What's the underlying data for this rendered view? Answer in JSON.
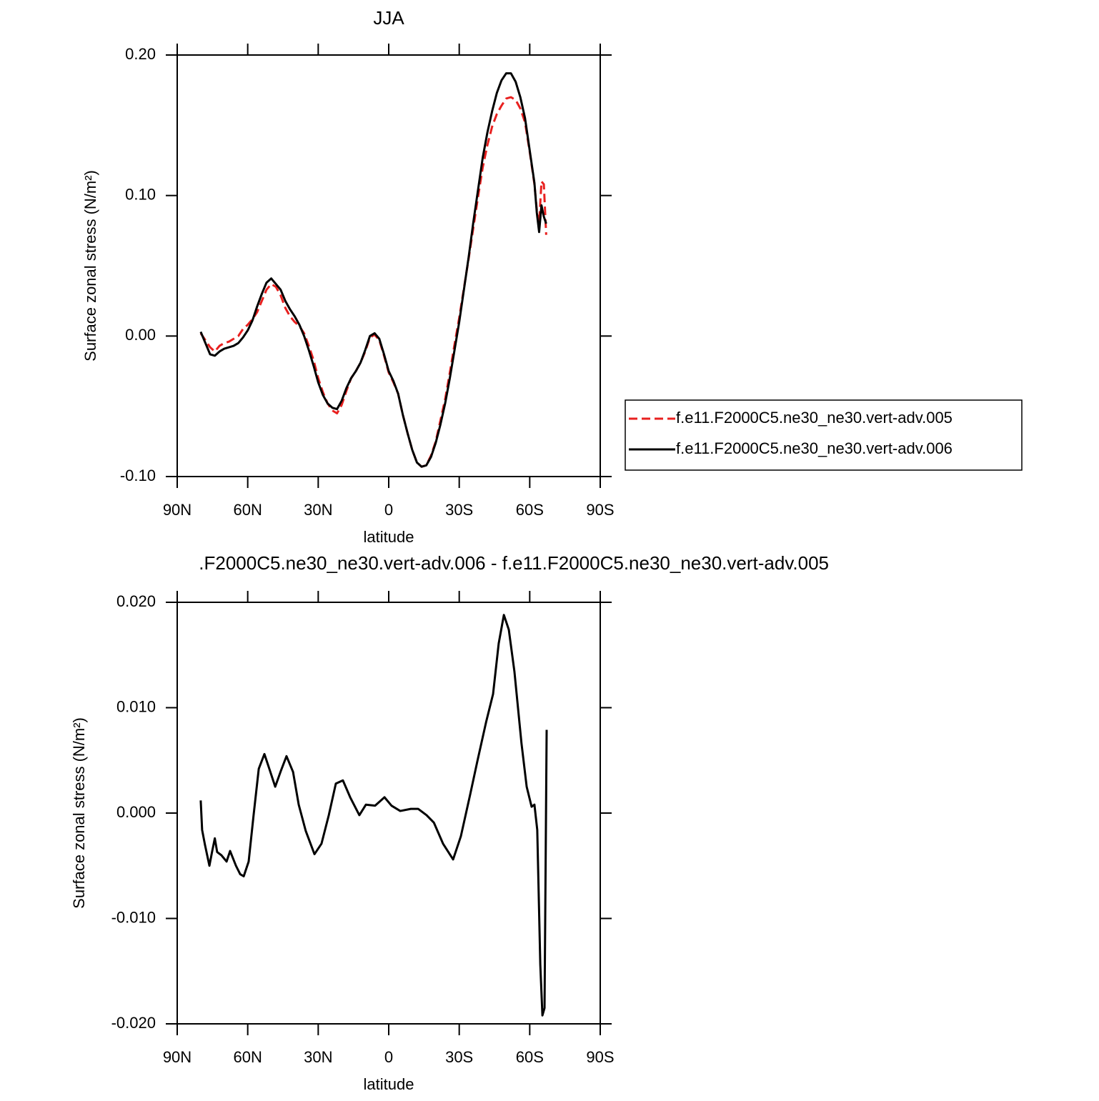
{
  "chart_data": [
    {
      "type": "line",
      "title": "JJA",
      "xlabel": "latitude",
      "ylabel": "Surface zonal stress (N/m²)",
      "xlim": [
        90,
        -90
      ],
      "ylim": [
        -0.1,
        0.2
      ],
      "xticks": [
        {
          "value": 90,
          "label": "90N"
        },
        {
          "value": 60,
          "label": "60N"
        },
        {
          "value": 30,
          "label": "30N"
        },
        0,
        {
          "value": -30,
          "label": "30S"
        },
        {
          "value": -60,
          "label": "60S"
        },
        {
          "value": -90,
          "label": "90S"
        }
      ],
      "yticks": [
        {
          "value": 0.2,
          "label": "0.20"
        },
        {
          "value": 0.1,
          "label": "0.10"
        },
        {
          "value": 0,
          "label": "0.00"
        },
        {
          "value": -0.1,
          "label": "-0.10"
        }
      ],
      "legend": "right",
      "x": [
        80,
        78,
        76,
        74,
        72,
        70,
        68,
        66,
        64,
        62,
        60,
        58,
        56,
        54,
        52,
        50,
        48,
        46,
        44,
        42,
        40,
        38,
        36,
        34,
        32,
        30,
        28,
        26,
        24,
        22,
        20,
        18,
        16,
        14,
        12,
        10,
        8,
        6,
        4,
        2,
        0,
        -2,
        -4,
        -6,
        -8,
        -10,
        -12,
        -14,
        -16,
        -18,
        -20,
        -22,
        -24,
        -26,
        -28,
        -30,
        -32,
        -34,
        -36,
        -38,
        -40,
        -42,
        -44,
        -46,
        -48,
        -50,
        -52,
        -54,
        -56,
        -58,
        -60,
        -62,
        -63,
        -64,
        -65,
        -66,
        -67
      ],
      "series": [
        {
          "name": "f.e11.F2000C5.ne30_ne30.vert-adv.005",
          "color": "#e8201f",
          "dashed": true,
          "values": [
            0.002,
            -0.003,
            -0.008,
            -0.011,
            -0.007,
            -0.005,
            -0.004,
            -0.002,
            0.0,
            0.005,
            0.008,
            0.012,
            0.017,
            0.025,
            0.033,
            0.037,
            0.035,
            0.029,
            0.02,
            0.014,
            0.01,
            0.007,
            0.002,
            -0.007,
            -0.017,
            -0.03,
            -0.04,
            -0.048,
            -0.053,
            -0.055,
            -0.049,
            -0.039,
            -0.03,
            -0.025,
            -0.019,
            -0.011,
            -0.001,
            0.001,
            -0.003,
            -0.014,
            -0.026,
            -0.033,
            -0.041,
            -0.056,
            -0.069,
            -0.081,
            -0.09,
            -0.093,
            -0.092,
            -0.085,
            -0.075,
            -0.06,
            -0.045,
            -0.026,
            -0.006,
            0.013,
            0.034,
            0.055,
            0.077,
            0.099,
            0.12,
            0.136,
            0.149,
            0.158,
            0.164,
            0.169,
            0.17,
            0.168,
            0.162,
            0.152,
            0.131,
            0.108,
            0.09,
            0.08,
            0.11,
            0.108,
            0.072
          ]
        },
        {
          "name": "f.e11.F2000C5.ne30_ne30.vert-adv.006",
          "color": "#000000",
          "dashed": false,
          "values": [
            0.003,
            -0.005,
            -0.013,
            -0.014,
            -0.011,
            -0.009,
            -0.008,
            -0.007,
            -0.005,
            -0.001,
            0.004,
            0.011,
            0.021,
            0.03,
            0.038,
            0.041,
            0.037,
            0.033,
            0.025,
            0.019,
            0.014,
            0.008,
            0.0,
            -0.01,
            -0.021,
            -0.033,
            -0.042,
            -0.048,
            -0.051,
            -0.052,
            -0.046,
            -0.037,
            -0.03,
            -0.025,
            -0.019,
            -0.01,
            0.0,
            0.002,
            -0.002,
            -0.013,
            -0.025,
            -0.032,
            -0.041,
            -0.056,
            -0.069,
            -0.081,
            -0.09,
            -0.093,
            -0.092,
            -0.086,
            -0.076,
            -0.063,
            -0.048,
            -0.03,
            -0.01,
            0.01,
            0.033,
            0.056,
            0.081,
            0.104,
            0.127,
            0.145,
            0.16,
            0.173,
            0.182,
            0.187,
            0.187,
            0.181,
            0.17,
            0.155,
            0.132,
            0.109,
            0.088,
            0.074,
            0.093,
            0.085,
            0.08
          ]
        }
      ]
    },
    {
      "type": "line",
      "title": ".F2000C5.ne30_ne30.vert-adv.006 - f.e11.F2000C5.ne30_ne30.vert-adv.005",
      "xlabel": "latitude",
      "ylabel": "Surface zonal stress (N/m²)",
      "xlim": [
        90,
        -90
      ],
      "ylim": [
        -0.02,
        0.02
      ],
      "xticks": [
        {
          "value": 90,
          "label": "90N"
        },
        {
          "value": 60,
          "label": "60N"
        },
        {
          "value": 30,
          "label": "30N"
        },
        0,
        {
          "value": -30,
          "label": "30S"
        },
        {
          "value": -60,
          "label": "60S"
        },
        {
          "value": -90,
          "label": "90S"
        }
      ],
      "yticks": [
        {
          "value": 0.02,
          "label": "0.020"
        },
        {
          "value": 0.01,
          "label": "0.010"
        },
        {
          "value": 0,
          "label": "0.000"
        },
        {
          "value": -0.01,
          "label": "-0.010"
        },
        {
          "value": -0.02,
          "label": "-0.020"
        }
      ],
      "x": [
        80,
        79.4,
        78.2,
        76.3,
        75.1,
        74,
        73,
        71.2,
        69,
        67.5,
        65,
        63.2,
        61.7,
        59.6,
        57.5,
        55.3,
        52.9,
        50.8,
        48.3,
        45.9,
        43.5,
        40.7,
        38.3,
        35.3,
        31.6,
        28.6,
        25.5,
        22.5,
        19.5,
        16.4,
        12.5,
        9.7,
        5.8,
        1.8,
        -1.2,
        -4.9,
        -9.4,
        -12.5,
        -16.1,
        -19.2,
        -23.1,
        -27.4,
        -30.7,
        -34.7,
        -37.7,
        -41.4,
        -44.4,
        -46.8,
        -49,
        -51.1,
        -53.5,
        -56.5,
        -58.7,
        -60.8,
        -62,
        -63.2,
        -64.5,
        -65.4,
        -66.3,
        -67.2
      ],
      "series": [
        {
          "color": "#000000",
          "dashed": false,
          "values": [
            0.0012,
            -0.0016,
            -0.003,
            -0.005,
            -0.0036,
            -0.0024,
            -0.0037,
            -0.004,
            -0.0046,
            -0.0036,
            -0.005,
            -0.0058,
            -0.006,
            -0.0046,
            -0.0002,
            0.0042,
            0.0056,
            0.0042,
            0.0025,
            0.004,
            0.0054,
            0.0039,
            0.0008,
            -0.0017,
            -0.0039,
            -0.0029,
            -0.0002,
            0.0028,
            0.0031,
            0.0015,
            -0.0002,
            0.0008,
            0.0007,
            0.0015,
            0.0007,
            0.0002,
            0.0004,
            0.0004,
            -0.0002,
            -0.0009,
            -0.0029,
            -0.0044,
            -0.0022,
            0.0018,
            0.0049,
            0.0086,
            0.0113,
            0.0161,
            0.0188,
            0.0174,
            0.0134,
            0.0066,
            0.0025,
            0.0006,
            0.0008,
            -0.0016,
            -0.0144,
            -0.0192,
            -0.0185,
            0.0079
          ]
        }
      ]
    }
  ]
}
